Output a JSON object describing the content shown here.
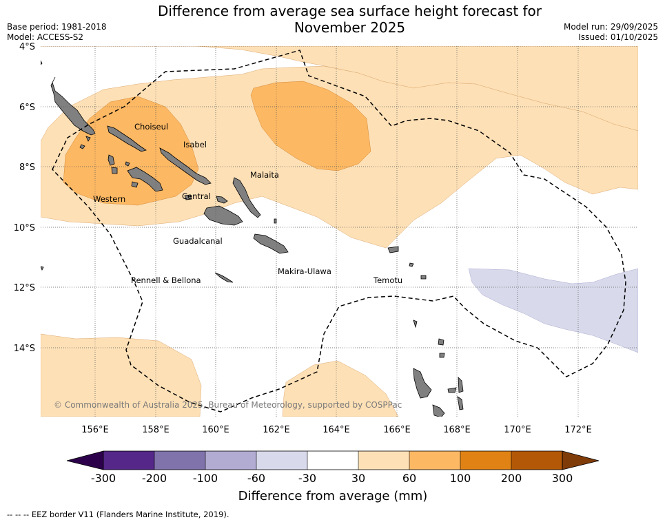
{
  "title": {
    "line1": "Difference from average sea surface height forecast for",
    "line2": "November 2025"
  },
  "meta": {
    "base_period": "Base period: 1981-2018",
    "model": "Model: ACCESS-S2",
    "model_run": "Model run: 29/09/2025",
    "issued": "Issued: 01/10/2025"
  },
  "axes": {
    "lat_labels": [
      "4°S",
      "6°S",
      "8°S",
      "10°S",
      "12°S",
      "14°S"
    ],
    "lon_labels": [
      "156°E",
      "158°E",
      "160°E",
      "162°E",
      "164°E",
      "166°E",
      "168°E",
      "170°E",
      "172°E"
    ]
  },
  "places": {
    "choiseul": "Choiseul",
    "isabel": "Isabel",
    "malaita": "Malaita",
    "western": "Western",
    "central": "Central",
    "guadalcanal": "Guadalcanal",
    "makira": "Makira-Ulawa",
    "rennell": "Rennell & Bellona",
    "temotu": "Temotu"
  },
  "copyright": "© Commonwealth of Australia 2025, Bureau of Meteorology, supported by COSPPac",
  "colorbar": {
    "label": "Difference from average (mm)",
    "ticks": [
      "-300",
      "-200",
      "-100",
      "-60",
      "-30",
      "30",
      "60",
      "100",
      "200",
      "300"
    ],
    "colors": {
      "under": "#2d004b",
      "c1": "#542788",
      "c2": "#8073ac",
      "c3": "#b2abd2",
      "c4": "#d8daeb",
      "c5": "#ffffff",
      "c6": "#fee0b6",
      "c7": "#fdb863",
      "c8": "#e08214",
      "c9": "#b35806",
      "over": "#7f3b08"
    }
  },
  "eez_note": "--  --  -- EEZ border V11 (Flanders Marine Institute, 2019)."
}
